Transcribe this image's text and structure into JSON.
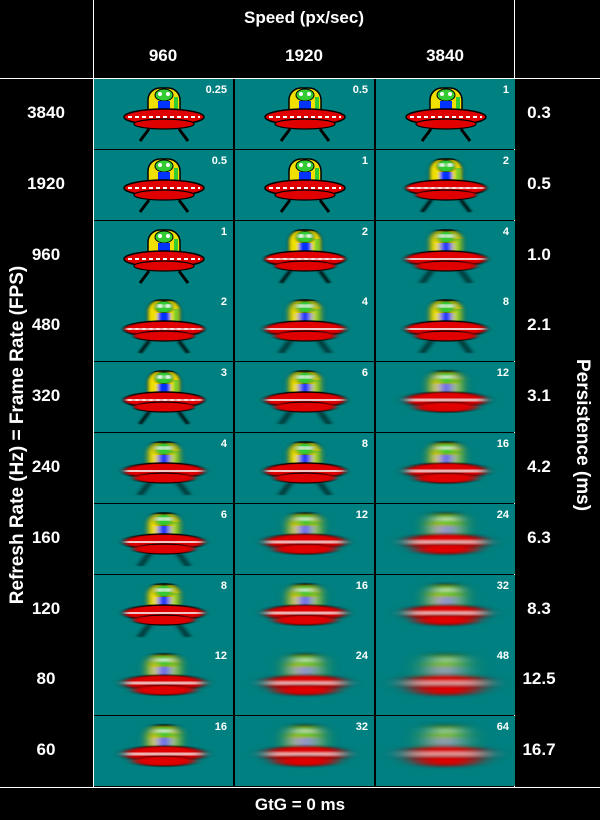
{
  "header": {
    "title": "Speed (px/sec)",
    "speeds": [
      "960",
      "1920",
      "3840"
    ]
  },
  "left_axis_label": "Refresh Rate (Hz) = Frame Rate (FPS)",
  "right_axis_label": "Persistence (ms)",
  "footer": "GtG = 0 ms",
  "rows": [
    {
      "rate": "3840",
      "persistence": "0.3",
      "cells": [
        "0.25",
        "0.5",
        "1"
      ]
    },
    {
      "rate": "1920",
      "persistence": "0.5",
      "cells": [
        "0.5",
        "1",
        "2"
      ]
    },
    {
      "rate": "960",
      "persistence": "1.0",
      "cells": [
        "1",
        "2",
        "4"
      ]
    },
    {
      "rate": "480",
      "persistence": "2.1",
      "cells": [
        "2",
        "4",
        "8"
      ]
    },
    {
      "rate": "320",
      "persistence": "3.1",
      "cells": [
        "3",
        "6",
        "12"
      ]
    },
    {
      "rate": "240",
      "persistence": "4.2",
      "cells": [
        "4",
        "8",
        "16"
      ]
    },
    {
      "rate": "160",
      "persistence": "6.3",
      "cells": [
        "6",
        "12",
        "24"
      ]
    },
    {
      "rate": "120",
      "persistence": "8.3",
      "cells": [
        "8",
        "16",
        "32"
      ]
    },
    {
      "rate": "80",
      "persistence": "12.5",
      "cells": [
        "12",
        "24",
        "48"
      ]
    },
    {
      "rate": "60",
      "persistence": "16.7",
      "cells": [
        "16",
        "32",
        "64"
      ]
    }
  ],
  "colors": {
    "cell_background": "#008080",
    "ufo_red": "#e00000",
    "alien_yellow": "#f0e000",
    "alien_green": "#33cc33",
    "alien_blue": "#0033ff"
  }
}
